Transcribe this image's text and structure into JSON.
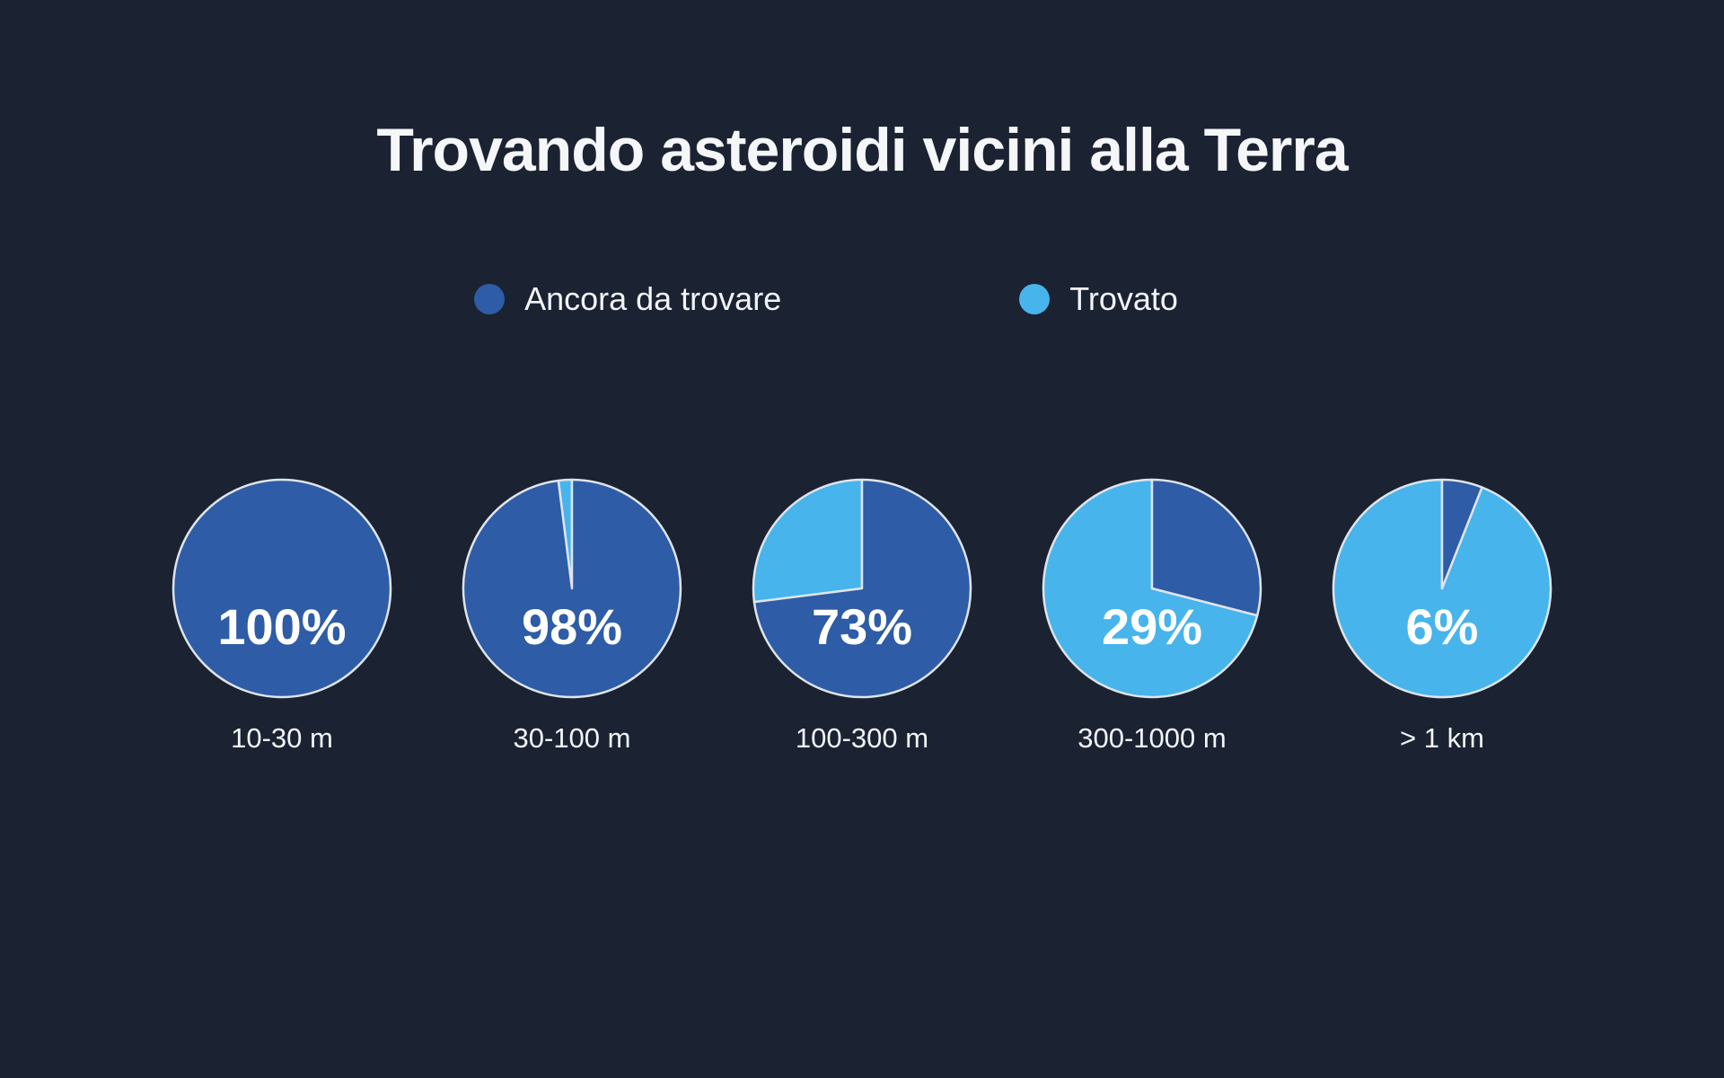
{
  "title": "Trovando asteroidi vicini alla Terra",
  "colors": {
    "background": "#1b2232",
    "ancora_da_trovare": "#2e5ca6",
    "trovato": "#47b4eb",
    "pie_stroke": "#dfe4ec",
    "text": "#f2f4f8",
    "center_label": "#ffffff"
  },
  "chart_data": {
    "type": "pie",
    "title": "Trovando asteroidi vicini alla Terra",
    "legend_position": "top",
    "direction": "clockwise",
    "start_angle_deg": 0,
    "categories": [
      "10-30 m",
      "30-100 m",
      "100-300 m",
      "300-1000 m",
      "> 1 km"
    ],
    "series": [
      {
        "name": "Ancora da trovare",
        "color": "#2e5ca6",
        "values": [
          100,
          98,
          73,
          29,
          6
        ]
      },
      {
        "name": "Trovato",
        "color": "#47b4eb",
        "values": [
          0,
          2,
          27,
          71,
          94
        ]
      }
    ],
    "center_labels": [
      "100%",
      "98%",
      "73%",
      "29%",
      "6%"
    ]
  }
}
